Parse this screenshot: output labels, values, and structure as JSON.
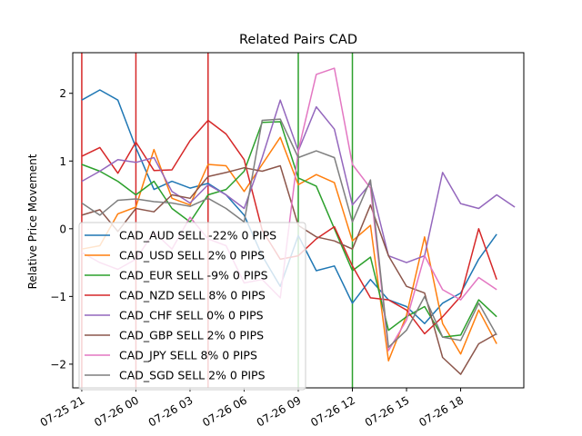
{
  "chart_data": {
    "type": "line",
    "title": "Related Pairs CAD",
    "xlabel": "",
    "ylabel": "Relative Price Movement",
    "x_tick_labels": [
      "07-25 21",
      "07-26 00",
      "07-26 03",
      "07-26 06",
      "07-26 09",
      "07-26 12",
      "07-26 15",
      "07-26 18"
    ],
    "y_ticks": [
      -2,
      -1,
      0,
      1,
      2
    ],
    "y_tick_labels": [
      "−2",
      "−1",
      "0",
      "1",
      "2"
    ],
    "xlim": [
      -0.5,
      24.5
    ],
    "ylim": [
      -2.35,
      2.6
    ],
    "legend_position": "lower-left",
    "grid": false,
    "x_hours": [
      0,
      1,
      2,
      3,
      4,
      5,
      6,
      7,
      8,
      9,
      10,
      11,
      12,
      13,
      14,
      15,
      16,
      17,
      18,
      19,
      20,
      21,
      22,
      23,
      24
    ],
    "vlines": [
      {
        "x": 0,
        "color": "#d62728"
      },
      {
        "x": 3,
        "color": "#d62728"
      },
      {
        "x": 7,
        "color": "#d62728"
      },
      {
        "x": 12,
        "color": "#2ca02c"
      },
      {
        "x": 15,
        "color": "#2ca02c"
      }
    ],
    "series": [
      {
        "name": "CAD_AUD SELL -22% 0 PIPS",
        "color": "#1f77b4",
        "values": [
          1.9,
          2.05,
          1.9,
          1.2,
          0.58,
          0.7,
          0.6,
          0.67,
          0.5,
          0.2,
          -0.4,
          -0.85,
          -0.1,
          -0.62,
          -0.55,
          -1.1,
          -0.75,
          -1.05,
          -1.15,
          -1.4,
          -1.1,
          -0.95,
          -0.45,
          -0.08,
          null
        ]
      },
      {
        "name": "CAD_USD SELL 2% 0 PIPS",
        "color": "#ff7f0e",
        "values": [
          -0.3,
          -0.25,
          0.22,
          0.32,
          1.17,
          0.45,
          0.35,
          0.95,
          0.93,
          0.55,
          0.95,
          1.35,
          0.65,
          0.8,
          0.68,
          -0.18,
          0.05,
          -1.95,
          -1.28,
          -0.12,
          -1.4,
          -1.85,
          -1.2,
          -1.7,
          null
        ]
      },
      {
        "name": "CAD_EUR SELL -9% 0 PIPS",
        "color": "#2ca02c",
        "values": [
          0.95,
          0.85,
          0.7,
          0.5,
          0.7,
          0.3,
          0.1,
          0.5,
          0.58,
          0.85,
          1.57,
          1.58,
          0.75,
          0.63,
          0.0,
          -0.62,
          -0.42,
          -1.5,
          -1.3,
          -1.15,
          -1.6,
          -1.57,
          -1.05,
          -1.3,
          null
        ]
      },
      {
        "name": "CAD_NZD SELL 8% 0 PIPS",
        "color": "#d62728",
        "values": [
          1.07,
          1.2,
          0.82,
          1.28,
          0.86,
          0.87,
          1.3,
          1.6,
          1.4,
          1.02,
          -0.02,
          -0.45,
          -0.4,
          -0.15,
          0.03,
          -0.55,
          -1.02,
          -1.05,
          -1.2,
          -1.55,
          -1.3,
          -1.0,
          0.0,
          -0.75,
          null
        ]
      },
      {
        "name": "CAD_CHF SELL 0% 0 PIPS",
        "color": "#9467bd",
        "values": [
          0.7,
          0.85,
          1.02,
          0.98,
          1.05,
          0.55,
          0.38,
          0.65,
          0.5,
          0.3,
          1.05,
          1.9,
          1.15,
          1.8,
          1.47,
          0.35,
          0.67,
          -0.4,
          -0.5,
          -0.4,
          0.83,
          0.37,
          0.3,
          0.5,
          0.32
        ]
      },
      {
        "name": "CAD_GBP SELL 2% 0 PIPS",
        "color": "#8c564b",
        "values": [
          0.2,
          0.28,
          -0.04,
          0.3,
          0.25,
          0.5,
          0.45,
          0.77,
          0.83,
          0.9,
          0.85,
          0.93,
          0.05,
          -0.12,
          -0.18,
          -0.3,
          0.35,
          -0.4,
          -0.85,
          -0.95,
          -1.9,
          -2.15,
          -1.7,
          -1.55,
          null
        ]
      },
      {
        "name": "CAD_JPY SELL 8% 0 PIPS",
        "color": "#e377c2",
        "values": [
          -0.35,
          -0.5,
          -0.6,
          -0.45,
          -0.05,
          -0.3,
          0.17,
          -0.15,
          -0.25,
          -0.8,
          -0.75,
          -1.02,
          1.15,
          2.28,
          2.37,
          0.95,
          0.6,
          -1.8,
          -1.35,
          -0.4,
          -0.9,
          -1.05,
          -0.72,
          -0.9,
          null
        ]
      },
      {
        "name": "CAD_SGD SELL 2% 0 PIPS",
        "color": "#7f7f7f",
        "values": [
          0.38,
          0.2,
          0.42,
          0.44,
          0.4,
          0.38,
          0.33,
          0.45,
          0.3,
          0.1,
          1.6,
          1.62,
          1.05,
          1.15,
          1.05,
          0.1,
          0.72,
          -1.75,
          -1.5,
          -1.0,
          -1.6,
          -1.65,
          -1.1,
          -1.57,
          null
        ]
      }
    ]
  }
}
